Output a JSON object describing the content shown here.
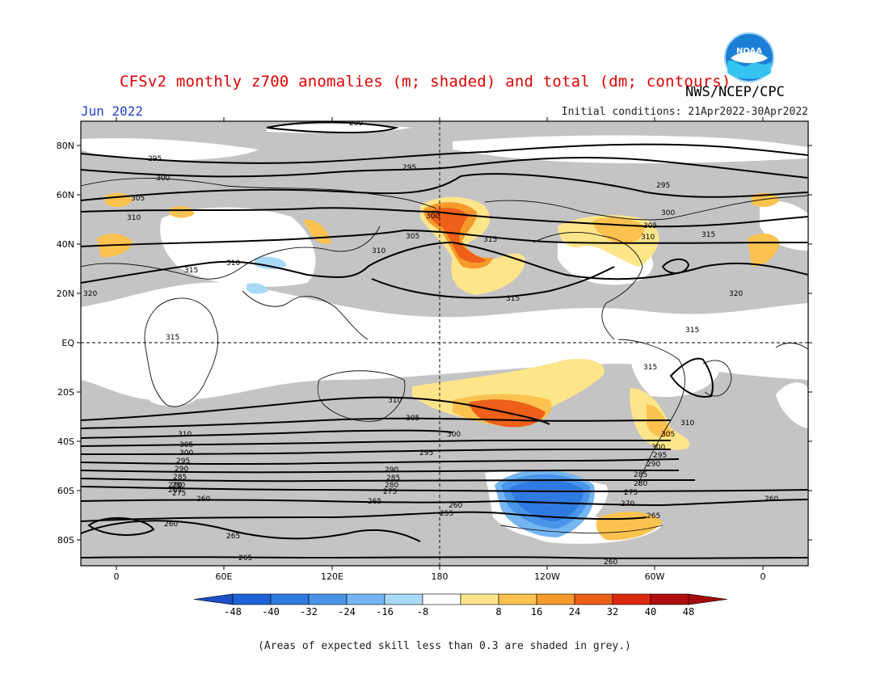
{
  "title": "CFSv2 monthly z700 anomalies (m; shaded) and total (dm; contours)",
  "agency": "NWS/NCEP/CPC",
  "month": "Jun 2022",
  "initial_conditions": "Initial conditions: 21Apr2022-30Apr2022",
  "footnote": "(Areas of expected skill less than 0.3 are shaded in grey.)",
  "logo_text": "NOAA",
  "lat_labels": [
    "80N",
    "60N",
    "40N",
    "20N",
    "EQ",
    "20S",
    "40S",
    "60S",
    "80S"
  ],
  "lon_labels": [
    "0",
    "60E",
    "120E",
    "180",
    "120W",
    "60W",
    "0"
  ],
  "colorbar": {
    "ticks": [
      "-48",
      "-40",
      "-32",
      "-24",
      "-16",
      "-8",
      "8",
      "16",
      "24",
      "32",
      "40",
      "48"
    ],
    "colors": [
      "#1e63d6",
      "#2f7ae0",
      "#4a95ea",
      "#75b6f1",
      "#a8daf8",
      "#ffffff",
      "#ffe58a",
      "#fcc24f",
      "#f59a2b",
      "#ee5f1a",
      "#d92a10",
      "#b00d0d"
    ],
    "low_arrow_color": "#1e4fc8",
    "high_arrow_color": "#a50a0a"
  },
  "colors": {
    "skill_mask": "#c4c4c4",
    "title": "#e00000",
    "month": "#1f3fd0"
  },
  "contour_labels": [
    "290",
    "295",
    "300",
    "305",
    "310",
    "315",
    "320",
    "285",
    "280",
    "275",
    "270",
    "265",
    "260",
    "255"
  ]
}
